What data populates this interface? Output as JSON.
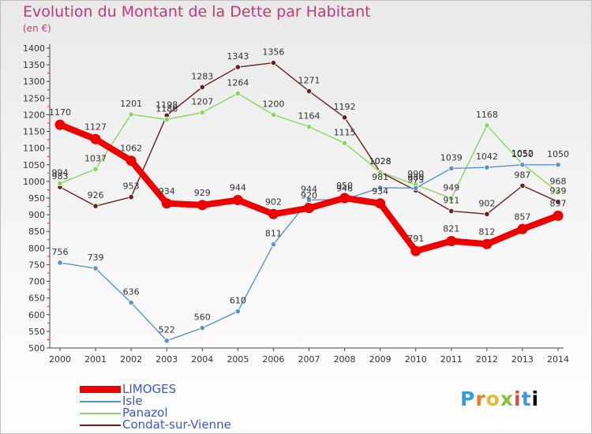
{
  "title": "Evolution du Montant de la Dette par Habitant",
  "subtitle": "(en €)",
  "logo_text": "Proxiti",
  "chart_data": {
    "type": "line",
    "title": "Evolution du Montant de la Dette par Habitant",
    "subtitle": "(en €)",
    "xlabel": "",
    "ylabel": "",
    "ylim": [
      500,
      1400
    ],
    "ytick_step": 50,
    "grid": false,
    "legend_position": "bottom-left",
    "x": [
      "2000",
      "2001",
      "2002",
      "2003",
      "2004",
      "2005",
      "2006",
      "2007",
      "2008",
      "2009",
      "2010",
      "2011",
      "2012",
      "2013",
      "2014"
    ],
    "series": [
      {
        "name": "LIMOGES",
        "color": "#ee0000",
        "values": [
          1170,
          1127,
          1062,
          934,
          929,
          944,
          902,
          920,
          950,
          934,
          791,
          821,
          812,
          857,
          897
        ]
      },
      {
        "name": "Isle",
        "color": "#5b93c8",
        "values": [
          756,
          739,
          636,
          522,
          560,
          610,
          811,
          944,
          946,
          981,
          980,
          1039,
          1042,
          1050,
          1050
        ]
      },
      {
        "name": "Panazol",
        "color": "#8cd461",
        "values": [
          994,
          1037,
          1201,
          1186,
          1207,
          1264,
          1200,
          1164,
          1115,
          1028,
          990,
          949,
          1168,
          1052,
          968
        ]
      },
      {
        "name": "Condat-sur-Vienne",
        "color": "#6b1f1f",
        "values": [
          983,
          926,
          953,
          1198,
          1283,
          1343,
          1356,
          1271,
          1192,
          1028,
          973,
          911,
          902,
          987,
          939
        ]
      }
    ]
  }
}
